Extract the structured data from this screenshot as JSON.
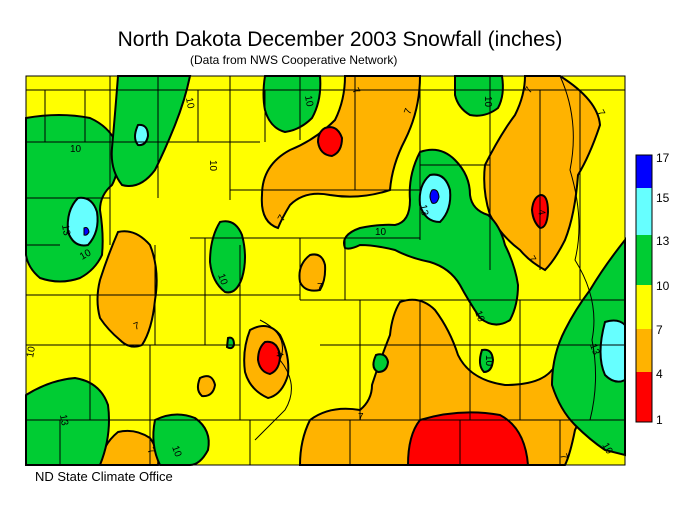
{
  "title": "North Dakota December 2003 Snowfall (inches)",
  "subtitle": "(Data from NWS Cooperative Network)",
  "credit": "ND State Climate Office",
  "legend": {
    "ticks": [
      "17",
      "15",
      "13",
      "10",
      "7",
      "4",
      "1"
    ],
    "bands": [
      {
        "range": "15-17",
        "color": "#0000ff"
      },
      {
        "range": "13-15",
        "color": "#66ffff"
      },
      {
        "range": "10-13",
        "color": "#00cc33"
      },
      {
        "range": "7-10",
        "color": "#ffff00"
      },
      {
        "range": "4-7",
        "color": "#ffb300"
      },
      {
        "range": "1-4",
        "color": "#ff0000"
      }
    ]
  },
  "contour_labels": {
    "l1": "10",
    "l2": "10",
    "l3": "7",
    "l4": "7",
    "l5": "10",
    "l6": "10",
    "l7": "13",
    "l8": "10",
    "l9": "10",
    "l10": "7",
    "l11": "7",
    "l12": "10",
    "l13": "13",
    "l14": "7",
    "l15": "7",
    "l16": "10",
    "l17": "7",
    "l18": "10",
    "l19": "10",
    "l20": "13",
    "l21": "10",
    "l22": "13",
    "l23": "10",
    "l24": "7",
    "l25": "7",
    "l26": "4",
    "l27": "4",
    "l28": "10",
    "l29": "7",
    "l30": "7"
  }
}
